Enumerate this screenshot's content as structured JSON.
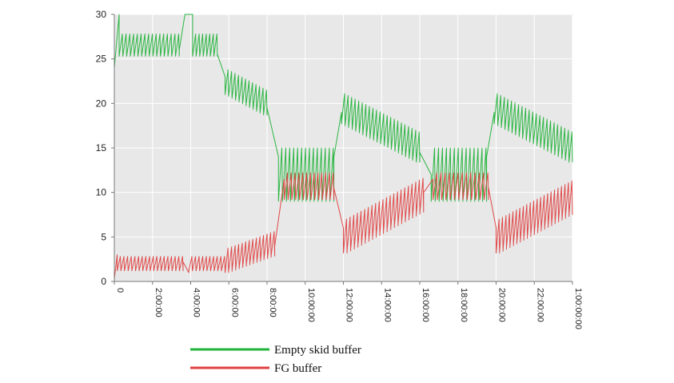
{
  "chart_data": {
    "type": "line",
    "title": "",
    "xlabel": "",
    "ylabel": "",
    "ylim": [
      0,
      30
    ],
    "yticks": [
      0,
      5,
      10,
      15,
      20,
      25,
      30
    ],
    "xlim": [
      0,
      24
    ],
    "x_unit": "hours",
    "xtick_labels": [
      "0",
      "2:00:00",
      "4:00:00",
      "6:00:00",
      "8:00:00",
      "10:00:00",
      "12:00:00",
      "14:00:00",
      "16:00:00",
      "18:00:00",
      "20:00:00",
      "22:00:00",
      "1:00:00:00"
    ],
    "grid": true,
    "legend_position": "bottom",
    "background": "#e8e8e8",
    "series": [
      {
        "name": "Empty skid buffer",
        "color": "#22b33a",
        "style": "sawtooth",
        "segments": [
          {
            "x_start": 0.0,
            "x_end": 0.25,
            "from": 24,
            "to": 30
          },
          {
            "x_start": 0.25,
            "x_end": 3.4,
            "low": 25.3,
            "high": 27.8,
            "trend_start": 26.5,
            "trend_end": 26.5,
            "cycles": 16
          },
          {
            "x_start": 3.4,
            "x_end": 3.7,
            "from": 26,
            "to": 30
          },
          {
            "x_start": 3.7,
            "x_end": 4.1,
            "from": 30,
            "to": 30
          },
          {
            "x_start": 4.1,
            "x_end": 5.4,
            "low": 25.3,
            "high": 27.8,
            "trend_start": 26.5,
            "trend_end": 26.5,
            "cycles": 7
          },
          {
            "x_start": 5.4,
            "x_end": 5.8,
            "from": 25.5,
            "to": 23
          },
          {
            "x_start": 5.8,
            "x_end": 8.0,
            "low_amp": 1.5,
            "trend_start": 22.5,
            "trend_end": 20,
            "cycles": 12
          },
          {
            "x_start": 8.0,
            "x_end": 8.6,
            "from": 19.5,
            "to": 14
          },
          {
            "x_start": 8.6,
            "x_end": 11.5,
            "low": 9,
            "high": 15,
            "trend_start": 12,
            "trend_end": 12,
            "cycles": 14
          },
          {
            "x_start": 11.5,
            "x_end": 11.9,
            "from": 14,
            "to": 19
          },
          {
            "x_start": 11.9,
            "x_end": 16.0,
            "low_amp": 1.8,
            "trend_start": 19.5,
            "trend_end": 15,
            "cycles": 22
          },
          {
            "x_start": 16.0,
            "x_end": 16.6,
            "from": 14.5,
            "to": 12
          },
          {
            "x_start": 16.6,
            "x_end": 19.5,
            "low": 9,
            "high": 15,
            "trend_start": 12,
            "trend_end": 12,
            "cycles": 14
          },
          {
            "x_start": 19.5,
            "x_end": 19.9,
            "from": 14,
            "to": 19
          },
          {
            "x_start": 19.9,
            "x_end": 24.0,
            "low_amp": 1.8,
            "trend_start": 19.5,
            "trend_end": 15,
            "cycles": 22
          }
        ]
      },
      {
        "name": "FG buffer",
        "color": "#e04040",
        "style": "sawtooth",
        "segments": [
          {
            "x_start": 0.0,
            "x_end": 0.15,
            "from": 0.3,
            "to": 3
          },
          {
            "x_start": 0.15,
            "x_end": 3.6,
            "low": 1.2,
            "high": 2.8,
            "trend_start": 2,
            "trend_end": 2,
            "cycles": 18
          },
          {
            "x_start": 3.6,
            "x_end": 3.9,
            "from": 2.2,
            "to": 1.0
          },
          {
            "x_start": 3.9,
            "x_end": 5.8,
            "low": 1.2,
            "high": 2.8,
            "trend_start": 2,
            "trend_end": 2,
            "cycles": 10
          },
          {
            "x_start": 5.8,
            "x_end": 8.4,
            "low_amp": 1.3,
            "trend_start": 2.3,
            "trend_end": 4.3,
            "cycles": 14
          },
          {
            "x_start": 8.4,
            "x_end": 8.9,
            "from": 4,
            "to": 11.5
          },
          {
            "x_start": 8.9,
            "x_end": 11.5,
            "low": 9.2,
            "high": 12.2,
            "trend_start": 10.7,
            "trend_end": 10.7,
            "cycles": 13
          },
          {
            "x_start": 11.5,
            "x_end": 12.0,
            "from": 10.5,
            "to": 6
          },
          {
            "x_start": 12.0,
            "x_end": 16.2,
            "low_amp": 1.8,
            "trend_start": 5,
            "trend_end": 9.8,
            "cycles": 22
          },
          {
            "x_start": 16.2,
            "x_end": 16.7,
            "from": 10,
            "to": 11.5
          },
          {
            "x_start": 16.7,
            "x_end": 19.6,
            "low": 9.2,
            "high": 12.2,
            "trend_start": 10.7,
            "trend_end": 10.7,
            "cycles": 13
          },
          {
            "x_start": 19.6,
            "x_end": 20.0,
            "from": 10.5,
            "to": 6
          },
          {
            "x_start": 20.0,
            "x_end": 24.0,
            "low_amp": 1.8,
            "trend_start": 5,
            "trend_end": 9.5,
            "cycles": 22
          }
        ]
      }
    ]
  }
}
